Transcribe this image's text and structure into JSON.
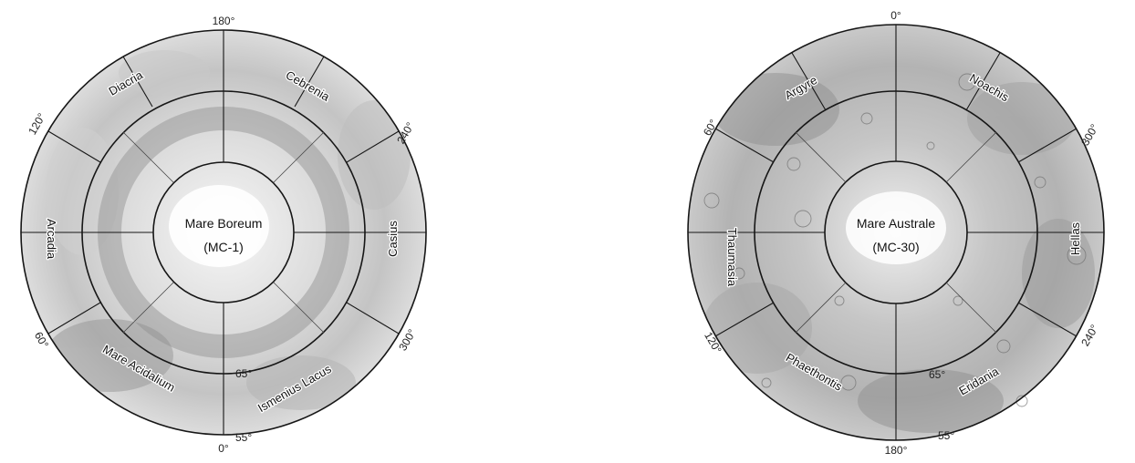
{
  "maps": [
    {
      "id": "north",
      "center_title": "Mare Boreum",
      "center_code": "(MC-1)",
      "longitude_labels": [
        "180°",
        "240°",
        "300°",
        "0°",
        "60°",
        "120°"
      ],
      "latitude_labels": [
        "65°",
        "55°"
      ],
      "regions": [
        "Diacria",
        "Cebrenia",
        "Casius",
        "Ismenius Lacus",
        "Mare Acidalium",
        "Arcadia"
      ]
    },
    {
      "id": "south",
      "center_title": "Mare Australe",
      "center_code": "(MC-30)",
      "longitude_labels": [
        "0°",
        "300°",
        "240°",
        "180°",
        "120°",
        "60°"
      ],
      "latitude_labels": [
        "65°",
        "55°"
      ],
      "regions": [
        "Argyre",
        "Noachis",
        "Hellas",
        "Eridania",
        "Phaethontis",
        "Thaumasia"
      ]
    }
  ],
  "colors": {
    "ink": "#161616",
    "terrain_light": "#ececec",
    "terrain_dark": "#9a9a9a",
    "polar_cap": "#ffffff"
  }
}
